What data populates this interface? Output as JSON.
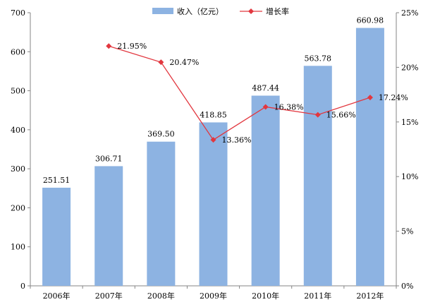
{
  "chart_data": {
    "type": "bar",
    "categories": [
      "2006年",
      "2007年",
      "2008年",
      "2009年",
      "2010年",
      "2011年",
      "2012年"
    ],
    "series": [
      {
        "name": "收入（亿元）",
        "type": "bar",
        "axis": "left",
        "values": [
          251.51,
          306.71,
          369.5,
          418.85,
          487.44,
          563.78,
          660.98
        ],
        "labels": [
          "251.51",
          "306.71",
          "369.50",
          "418.85",
          "487.44",
          "563.78",
          "660.98"
        ],
        "color": "#8db3e2"
      },
      {
        "name": "增长率",
        "type": "line",
        "axis": "right",
        "values": [
          null,
          21.95,
          20.47,
          13.36,
          16.38,
          15.66,
          17.24
        ],
        "labels": [
          "",
          "21.95%",
          "20.47%",
          "13.36%",
          "16.38%",
          "15.66%",
          "17.24%"
        ],
        "color": "#e2373f"
      }
    ],
    "y_left": {
      "lim": [
        0,
        700
      ],
      "ticks": [
        0,
        100,
        200,
        300,
        400,
        500,
        600,
        700
      ],
      "tick_labels": [
        "0",
        "100",
        "200",
        "300",
        "400",
        "500",
        "600",
        "700"
      ]
    },
    "y_right": {
      "lim": [
        0,
        25
      ],
      "ticks": [
        0,
        5,
        10,
        15,
        20,
        25
      ],
      "tick_labels": [
        "0%",
        "5%",
        "10%",
        "15%",
        "20%",
        "25%"
      ]
    },
    "title": "",
    "xlabel": "",
    "ylabel": "",
    "grid": false,
    "legend": "top-center"
  }
}
